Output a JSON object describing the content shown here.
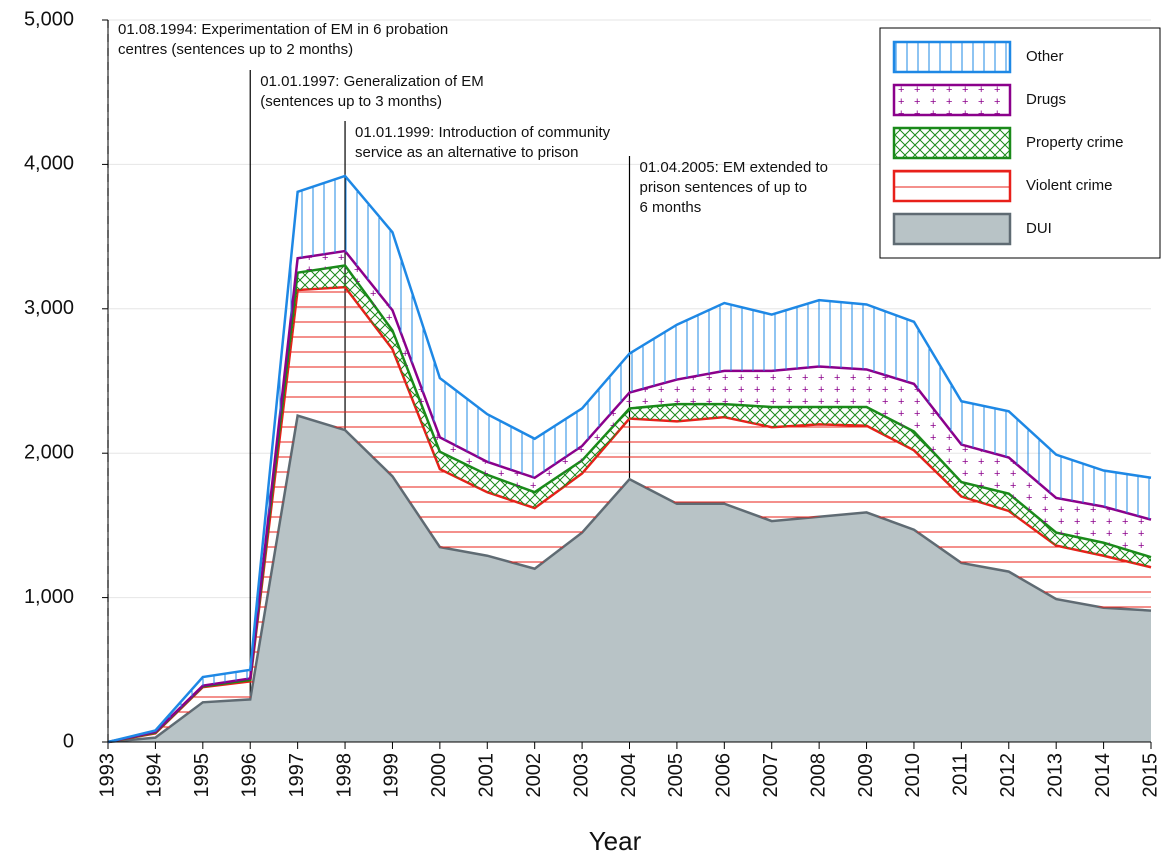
{
  "chart_data": {
    "type": "stacked_area",
    "x_label": "Year",
    "x": [
      1993,
      1994,
      1995,
      1996,
      1997,
      1998,
      1999,
      2000,
      2001,
      2002,
      2003,
      2004,
      2005,
      2006,
      2007,
      2008,
      2009,
      2010,
      2011,
      2012,
      2013,
      2014,
      2015
    ],
    "xlim": [
      1993,
      2015
    ],
    "xticks": [
      1993,
      1994,
      1995,
      1996,
      1997,
      1998,
      1999,
      2000,
      2001,
      2002,
      2003,
      2004,
      2005,
      2006,
      2007,
      2008,
      2009,
      2010,
      2011,
      2012,
      2013,
      2014,
      2015
    ],
    "ylim": [
      0,
      5000
    ],
    "yticks": [
      0,
      {
        "value": 1000,
        "label": "1,000"
      },
      {
        "value": 2000,
        "label": "2,000"
      },
      {
        "value": 3000,
        "label": "3,000"
      },
      {
        "value": 4000,
        "label": "4,000"
      },
      {
        "value": 5000,
        "label": "5,000"
      }
    ],
    "grid": true,
    "legend": "top-right",
    "series": [
      {
        "name": "Other",
        "color": "#1e88e5",
        "pattern": "vertical-lines",
        "values": [
          0,
          10,
          60,
          60,
          460,
          520,
          540,
          410,
          330,
          270,
          260,
          270,
          380,
          470,
          390,
          460,
          450,
          430,
          300,
          320,
          300,
          250,
          290
        ]
      },
      {
        "name": "Drugs",
        "color": "#8b008b",
        "pattern": "dots",
        "values": [
          0,
          5,
          5,
          10,
          100,
          100,
          140,
          100,
          90,
          100,
          100,
          110,
          170,
          230,
          250,
          280,
          260,
          330,
          260,
          250,
          240,
          250,
          260
        ]
      },
      {
        "name": "Property crime",
        "color": "#1a8a1a",
        "pattern": "crosshatch",
        "values": [
          0,
          5,
          5,
          10,
          120,
          150,
          130,
          120,
          120,
          110,
          90,
          70,
          120,
          90,
          140,
          120,
          130,
          130,
          100,
          120,
          90,
          90,
          70
        ]
      },
      {
        "name": "Violent crime",
        "color": "#e8201a",
        "pattern": "horizontal-lines",
        "values": [
          0,
          30,
          105,
          125,
          870,
          990,
          880,
          540,
          440,
          420,
          410,
          420,
          570,
          600,
          650,
          640,
          600,
          550,
          460,
          420,
          370,
          360,
          300
        ]
      },
      {
        "name": "DUI",
        "color": "#5f6b73",
        "fill": "#b8c3c6",
        "pattern": "solid",
        "values": [
          0,
          30,
          275,
          295,
          2260,
          2160,
          1840,
          1350,
          1290,
          1200,
          1450,
          1820,
          1650,
          1650,
          1530,
          1560,
          1590,
          1470,
          1240,
          1180,
          990,
          930,
          910
        ]
      }
    ],
    "annotations": [
      {
        "x": 1993,
        "style": "dashed",
        "lines": [
          "01.08.1994: Experimentation of EM in 6 probation",
          "centres (sentences up to 2 months)"
        ]
      },
      {
        "x": 1996,
        "style": "solid",
        "lines": [
          "01.01.1997: Generalization of EM",
          "(sentences up to 3 months)"
        ]
      },
      {
        "x": 1998,
        "style": "solid",
        "lines": [
          "01.01.1999: Introduction of community",
          "service as an alternative to prison"
        ]
      },
      {
        "x": 2004,
        "style": "solid",
        "lines": [
          "01.04.2005: EM extended to",
          "prison sentences of up to",
          "6 months"
        ]
      }
    ]
  }
}
